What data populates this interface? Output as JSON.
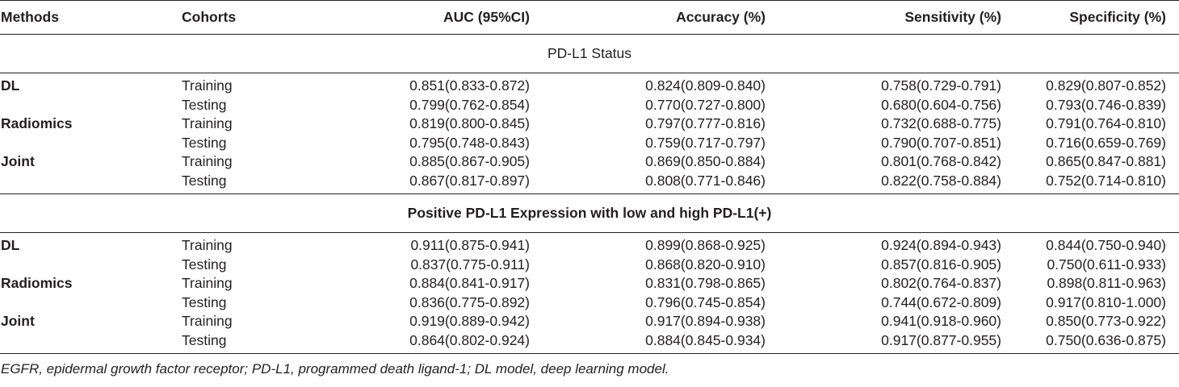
{
  "headers": [
    "Methods",
    "Cohorts",
    "AUC (95%CI)",
    "Accuracy (%)",
    "Sensitivity (%)",
    "Specificity (%)"
  ],
  "sections": [
    {
      "title": "PD-L1 Status",
      "rows": [
        [
          "DL",
          "Training",
          "0.851(0.833-0.872)",
          "0.824(0.809-0.840)",
          "0.758(0.729-0.791)",
          "0.829(0.807-0.852)"
        ],
        [
          "",
          "Testing",
          "0.799(0.762-0.854)",
          "0.770(0.727-0.800)",
          "0.680(0.604-0.756)",
          "0.793(0.746-0.839)"
        ],
        [
          "Radiomics",
          "Training",
          "0.819(0.800-0.845)",
          "0.797(0.777-0.816)",
          "0.732(0.688-0.775)",
          "0.791(0.764-0.810)"
        ],
        [
          "",
          "Testing",
          "0.795(0.748-0.843)",
          "0.759(0.717-0.797)",
          "0.790(0.707-0.851)",
          "0.716(0.659-0.769)"
        ],
        [
          "Joint",
          "Training",
          "0.885(0.867-0.905)",
          "0.869(0.850-0.884)",
          "0.801(0.768-0.842)",
          "0.865(0.847-0.881)"
        ],
        [
          "",
          "Testing",
          "0.867(0.817-0.897)",
          "0.808(0.771-0.846)",
          "0.822(0.758-0.884)",
          "0.752(0.714-0.810)"
        ]
      ]
    },
    {
      "title": "Positive PD-L1 Expression with low and high PD-L1(+)",
      "rows": [
        [
          "DL",
          "Training",
          "0.911(0.875-0.941)",
          "0.899(0.868-0.925)",
          "0.924(0.894-0.943)",
          "0.844(0.750-0.940)"
        ],
        [
          "",
          "Testing",
          "0.837(0.775-0.911)",
          "0.868(0.820-0.910)",
          "0.857(0.816-0.905)",
          "0.750(0.611-0.933)"
        ],
        [
          "Radiomics",
          "Training",
          "0.884(0.841-0.917)",
          "0.831(0.798-0.865)",
          "0.802(0.764-0.837)",
          "0.898(0.811-0.963)"
        ],
        [
          "",
          "Testing",
          "0.836(0.775-0.892)",
          "0.796(0.745-0.854)",
          "0.744(0.672-0.809)",
          "0.917(0.810-1.000)"
        ],
        [
          "Joint",
          "Training",
          "0.919(0.889-0.942)",
          "0.917(0.894-0.938)",
          "0.941(0.918-0.960)",
          "0.850(0.773-0.922)"
        ],
        [
          "",
          "Testing",
          "0.864(0.802-0.924)",
          "0.884(0.845-0.934)",
          "0.917(0.877-0.955)",
          "0.750(0.636-0.875)"
        ]
      ]
    }
  ],
  "footnote": "EGFR, epidermal growth factor receptor; PD-L1, programmed death ligand-1; DL model, deep learning model."
}
